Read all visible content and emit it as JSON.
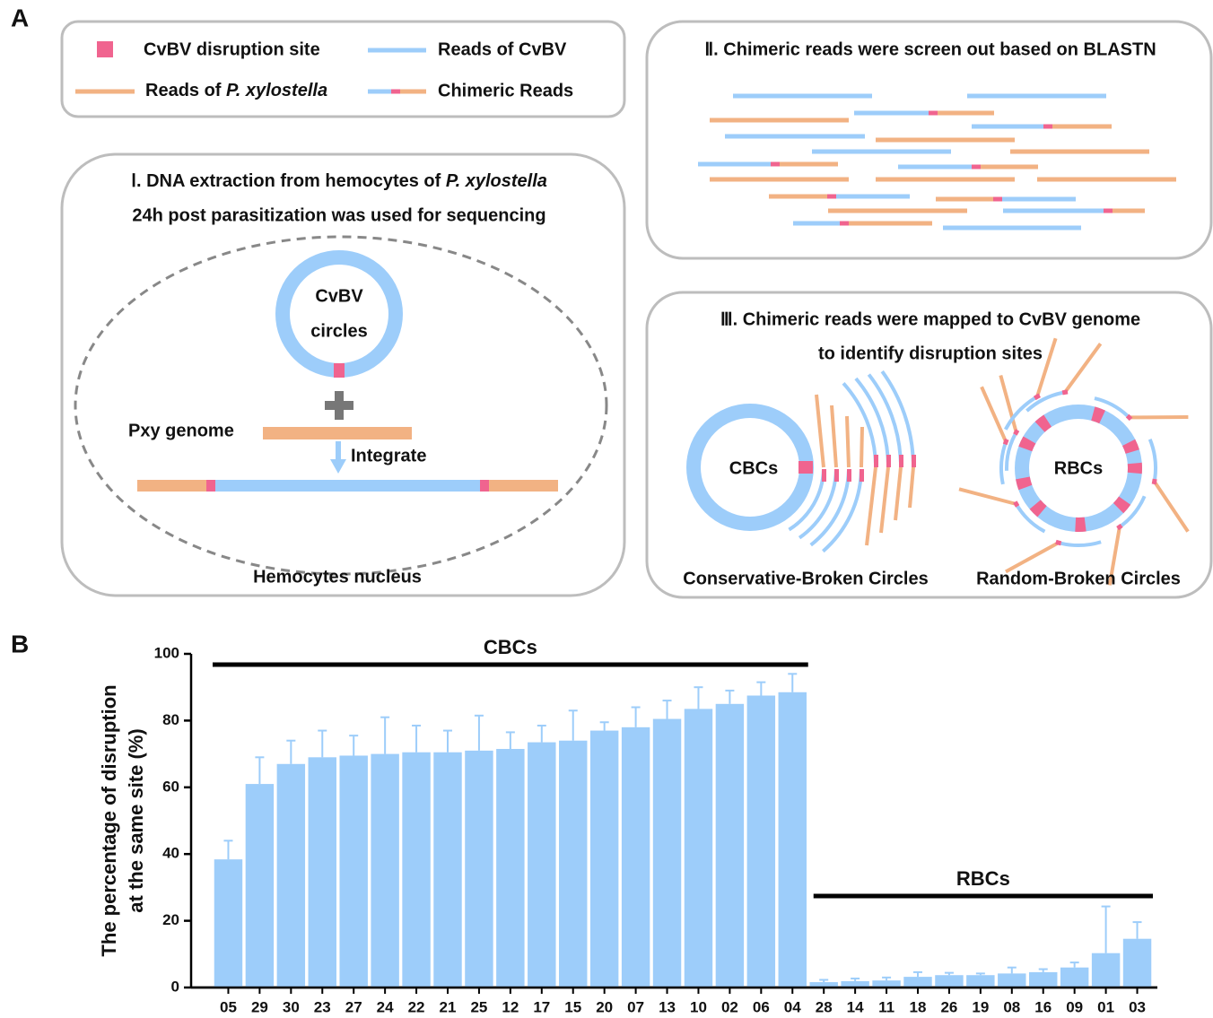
{
  "panel_labels": [
    "A",
    "B"
  ],
  "legend": [
    "CvBV disruption site",
    "Reads of CvBV",
    [
      "Reads of ",
      "P. xylostella"
    ],
    "Chimeric Reads"
  ],
  "step1": {
    "title": [
      "Ⅰ. DNA extraction from hemocytes of ",
      "P. xylostella"
    ],
    "title_line2": "24h post parasitization was used for sequencing",
    "circle_label": [
      "CvBV",
      "circles"
    ],
    "genome_label": "Pxy genome",
    "integrate": "Integrate",
    "nucleus": "Hemocytes nucleus"
  },
  "step2": {
    "title": "Ⅱ. Chimeric reads were screen out based on BLASTN"
  },
  "step3": {
    "title_lines": [
      "Ⅲ. Chimeric reads were mapped to CvBV genome",
      "to identify disruption sites"
    ],
    "cbc_label": "CBCs",
    "rbc_label": "RBCs",
    "cbc_caption": "Conservative-Broken Circles",
    "rbc_caption": "Random-Broken Circles"
  },
  "chart_data": {
    "type": "bar",
    "y_label": [
      "The percentage of disruption",
      "at the same site (%)"
    ],
    "categories": [
      "05",
      "29",
      "30",
      "23",
      "27",
      "24",
      "22",
      "21",
      "25",
      "12",
      "17",
      "15",
      "20",
      "07",
      "13",
      "10",
      "02",
      "06",
      "04",
      "28",
      "14",
      "11",
      "18",
      "26",
      "19",
      "08",
      "16",
      "09",
      "01",
      "03"
    ],
    "values": [
      38.4,
      61,
      67,
      69,
      69.5,
      70,
      70.5,
      70.5,
      71,
      71.5,
      73.5,
      74,
      77,
      78,
      80.5,
      83.5,
      85,
      87.5,
      88.5,
      1.6,
      1.9,
      2.1,
      3.2,
      3.7,
      3.7,
      4.2,
      4.6,
      6,
      10.3,
      14.6
    ],
    "errors": [
      5.6,
      8,
      7,
      8,
      6,
      11,
      8,
      6.5,
      10.5,
      5,
      5,
      9,
      2.5,
      6,
      5.5,
      6.5,
      4,
      4,
      5.5,
      0.7,
      0.8,
      0.9,
      1.4,
      0.7,
      0.5,
      1.8,
      0.9,
      1.5,
      14,
      5
    ],
    "color": "#9dcdfa",
    "ylim": [
      0,
      100
    ],
    "yticks": [
      0,
      20,
      40,
      60,
      80,
      100
    ],
    "groups": [
      {
        "label": "CBCs",
        "start": "05",
        "end": "04"
      },
      {
        "label": "RBCs",
        "start": "28",
        "end": "03"
      }
    ]
  }
}
